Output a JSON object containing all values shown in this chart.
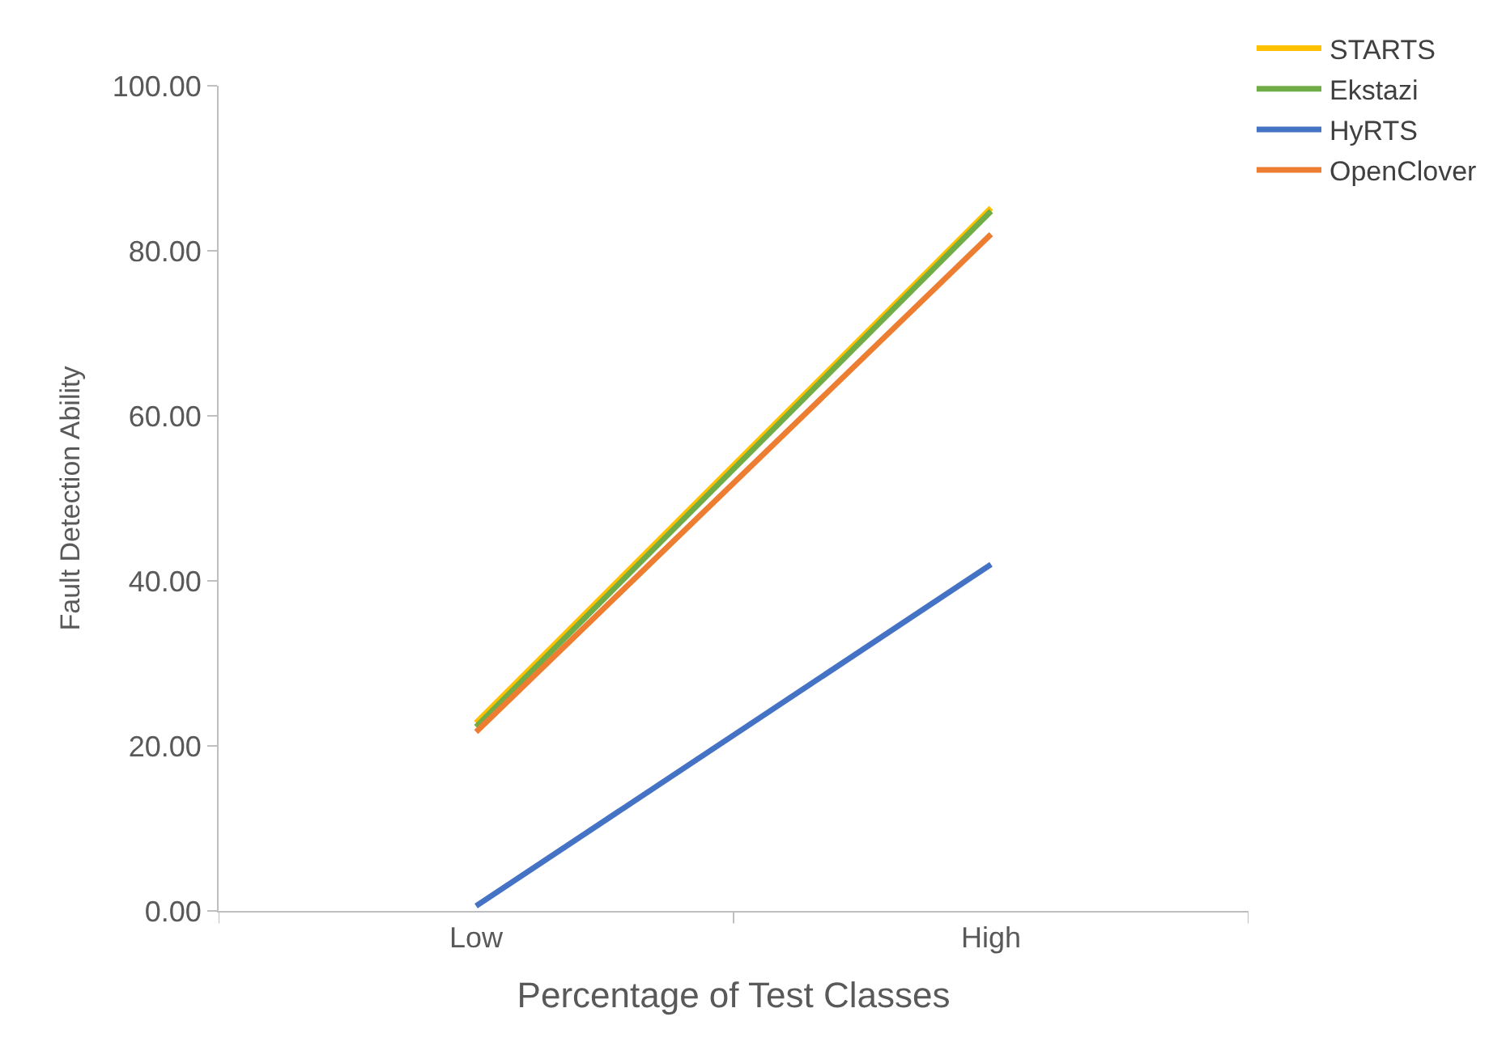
{
  "chart_data": {
    "type": "line",
    "xlabel": "Percentage of Test Classes",
    "ylabel": "Fault Detection Ability",
    "categories": [
      "Low",
      "High"
    ],
    "series": [
      {
        "name": "STARTS",
        "color": "#ffc000",
        "values": [
          22.8,
          85.2
        ]
      },
      {
        "name": "Ekstazi",
        "color": "#70ad47",
        "values": [
          22.3,
          84.8
        ]
      },
      {
        "name": "HyRTS",
        "color": "#4472c4",
        "values": [
          0.6,
          42.0
        ]
      },
      {
        "name": "OpenClover",
        "color": "#ed7d31",
        "values": [
          21.7,
          82.0
        ]
      }
    ],
    "ylim": [
      0,
      100
    ],
    "yticks": [
      {
        "value": 0,
        "label": "0.00"
      },
      {
        "value": 20,
        "label": "20.00"
      },
      {
        "value": 40,
        "label": "40.00"
      },
      {
        "value": 60,
        "label": "60.00"
      },
      {
        "value": 80,
        "label": "80.00"
      },
      {
        "value": 100,
        "label": "100.00"
      }
    ],
    "legend": "top right",
    "marker": "none",
    "line_style": "solid"
  }
}
